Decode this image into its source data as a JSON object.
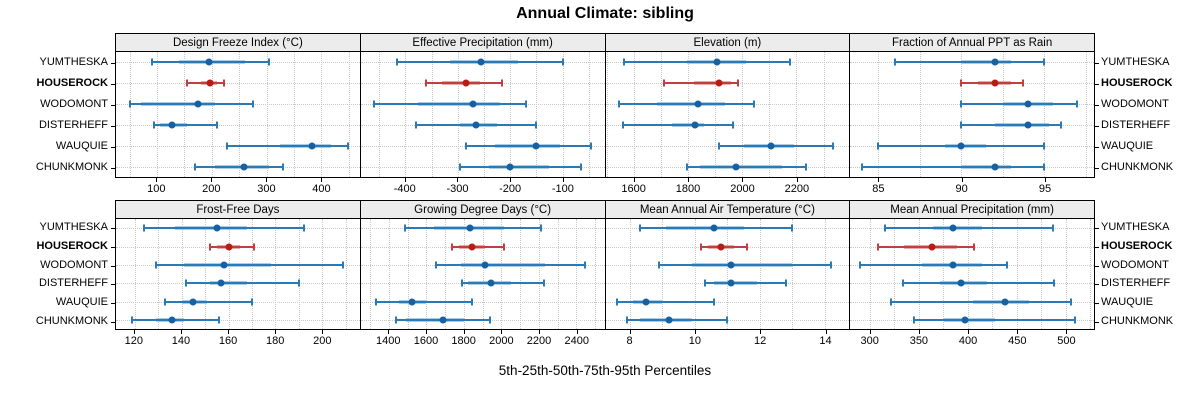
{
  "title": "Annual Climate: sibling",
  "caption": "5th-25th-50th-75th-95th Percentiles",
  "sites": [
    "YUMTHESKA",
    "HOUSEROCK",
    "WODOMONT",
    "DISTERHEFF",
    "WAUQUIE",
    "CHUNKMONK"
  ],
  "highlight_site": "HOUSEROCK",
  "colors": {
    "blue_line": "#2b7ab5",
    "blue_band": "#a9cee7",
    "blue_dot": "#1761a3",
    "red_line": "#c04040",
    "red_band": "#e6aba6",
    "red_dot": "#b51d15",
    "grid": "#c9c9c9",
    "strip_bg": "#ececec",
    "border": "#000000"
  },
  "chart_data": {
    "type": "dotplot",
    "title": "Annual Climate: sibling",
    "xlabel": "5th-25th-50th-75th-95th Percentiles",
    "percentile_labels": [
      "5th",
      "25th",
      "50th",
      "75th",
      "95th"
    ],
    "site_order": [
      "YUMTHESKA",
      "HOUSEROCK",
      "WODOMONT",
      "DISTERHEFF",
      "WAUQUIE",
      "CHUNKMONK"
    ],
    "panels": [
      {
        "title": "Design Freeze Index (°C)",
        "row": 0,
        "ticks": [
          100,
          200,
          300,
          400
        ],
        "grid": [
          50,
          100,
          150,
          200,
          250,
          300,
          350,
          400,
          450
        ],
        "xlim": [
          25,
          470
        ],
        "values": [
          [
            90,
            140,
            195,
            260,
            305
          ],
          [
            155,
            180,
            196,
            210,
            222
          ],
          [
            50,
            70,
            175,
            205,
            275
          ],
          [
            95,
            105,
            127,
            155,
            210
          ],
          [
            227,
            325,
            383,
            417,
            448
          ],
          [
            170,
            205,
            258,
            305,
            330
          ]
        ]
      },
      {
        "title": "Effective Precipitation (mm)",
        "row": 0,
        "ticks": [
          -400,
          -300,
          -200,
          -100
        ],
        "grid": [
          -450,
          -400,
          -350,
          -300,
          -250,
          -200,
          -150,
          -100,
          -50
        ],
        "xlim": [
          -485,
          -20
        ],
        "values": [
          [
            -415,
            -315,
            -255,
            -185,
            -100
          ],
          [
            -360,
            -330,
            -285,
            -258,
            -215
          ],
          [
            -460,
            -375,
            -270,
            -220,
            -170
          ],
          [
            -380,
            -295,
            -265,
            -225,
            -150
          ],
          [
            -285,
            -228,
            -150,
            -105,
            -45
          ],
          [
            -295,
            -240,
            -200,
            -125,
            -65
          ]
        ]
      },
      {
        "title": "Elevation (m)",
        "row": 0,
        "ticks": [
          1600,
          1800,
          2000,
          2200
        ],
        "grid": [
          1500,
          1600,
          1700,
          1800,
          1900,
          2000,
          2100,
          2200,
          2300
        ],
        "xlim": [
          1495,
          2395
        ],
        "values": [
          [
            1565,
            1795,
            1905,
            2015,
            2175
          ],
          [
            1710,
            1820,
            1915,
            1958,
            1985
          ],
          [
            1545,
            1685,
            1835,
            1935,
            2045
          ],
          [
            1560,
            1740,
            1825,
            1858,
            1965
          ],
          [
            1915,
            2005,
            2105,
            2190,
            2335
          ],
          [
            1795,
            1845,
            1975,
            2145,
            2235
          ]
        ]
      },
      {
        "title": "Fraction of Annual PPT as Rain",
        "row": 0,
        "ticks": [
          85,
          90,
          95
        ],
        "grid": [
          85,
          87.5,
          90,
          92.5,
          95,
          97.5
        ],
        "xlim": [
          83.3,
          98
        ],
        "values": [
          [
            86,
            90,
            92,
            93,
            95
          ],
          [
            90,
            91,
            92,
            93,
            93.7
          ],
          [
            90,
            92.5,
            94,
            95.5,
            97
          ],
          [
            90,
            92,
            94,
            95.3,
            96
          ],
          [
            85,
            89,
            90,
            91.5,
            95
          ],
          [
            84,
            90,
            92,
            93,
            95
          ]
        ]
      },
      {
        "title": "Frost-Free Days",
        "row": 1,
        "ticks": [
          120,
          140,
          160,
          180,
          200
        ],
        "grid": [
          120,
          130,
          140,
          150,
          160,
          170,
          180,
          190,
          200,
          210
        ],
        "xlim": [
          112,
          216
        ],
        "values": [
          [
            124,
            137,
            155,
            168,
            192
          ],
          [
            152,
            155,
            160,
            165,
            171
          ],
          [
            129,
            141,
            158,
            178,
            209
          ],
          [
            142,
            152,
            157,
            168,
            190
          ],
          [
            133,
            140,
            145,
            151,
            170
          ],
          [
            119,
            129,
            136,
            141,
            156
          ]
        ]
      },
      {
        "title": "Growing Degree Days (°C)",
        "row": 1,
        "ticks": [
          1400,
          1600,
          1800,
          2000,
          2200,
          2400
        ],
        "grid": [
          1300,
          1400,
          1500,
          1600,
          1700,
          1800,
          1900,
          2000,
          2100,
          2200,
          2300,
          2400,
          2500
        ],
        "xlim": [
          1250,
          2550
        ],
        "values": [
          [
            1485,
            1640,
            1830,
            2015,
            2210
          ],
          [
            1735,
            1775,
            1845,
            1910,
            2015
          ],
          [
            1650,
            1785,
            1915,
            2230,
            2445
          ],
          [
            1790,
            1820,
            1945,
            2050,
            2225
          ],
          [
            1330,
            1455,
            1525,
            1600,
            1845
          ],
          [
            1440,
            1490,
            1690,
            1800,
            1940
          ]
        ]
      },
      {
        "title": "Mean Annual Air Temperature (°C)",
        "row": 1,
        "ticks": [
          8,
          10,
          12,
          14
        ],
        "grid": [
          8,
          9,
          10,
          11,
          12,
          13,
          14
        ],
        "xlim": [
          7.25,
          14.75
        ],
        "values": [
          [
            8.3,
            9.1,
            10.6,
            11.5,
            13.0
          ],
          [
            10.2,
            10.4,
            10.8,
            11.2,
            11.6
          ],
          [
            8.9,
            9.9,
            11.1,
            13.0,
            14.2
          ],
          [
            10.3,
            10.6,
            11.1,
            11.9,
            12.8
          ],
          [
            7.6,
            8.1,
            8.5,
            9.0,
            10.6
          ],
          [
            7.9,
            8.3,
            9.2,
            9.9,
            11.0
          ]
        ]
      },
      {
        "title": "Mean Annual Precipitation (mm)",
        "row": 1,
        "ticks": [
          300,
          350,
          400,
          450,
          500
        ],
        "grid": [
          300,
          325,
          350,
          375,
          400,
          425,
          450,
          475,
          500,
          525
        ],
        "xlim": [
          280,
          529
        ],
        "values": [
          [
            315,
            365,
            385,
            415,
            487
          ],
          [
            308,
            335,
            364,
            389,
            406
          ],
          [
            290,
            353,
            385,
            415,
            440
          ],
          [
            334,
            372,
            393,
            420,
            488
          ],
          [
            322,
            405,
            438,
            463,
            505
          ],
          [
            345,
            376,
            397,
            428,
            510
          ]
        ]
      }
    ]
  }
}
